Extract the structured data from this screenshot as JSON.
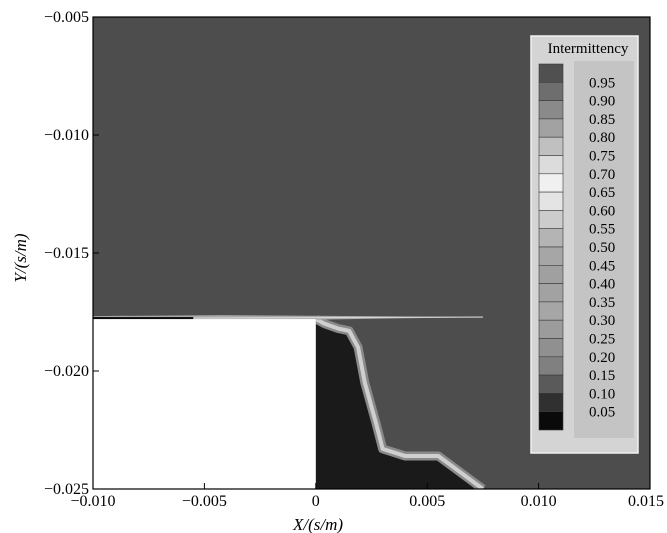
{
  "chart_data": {
    "type": "heatmap",
    "title": "",
    "xlabel": "X/(s/m)",
    "ylabel": "Y/(s/m)",
    "xlim": [
      -0.01,
      0.015
    ],
    "ylim": [
      -0.025,
      -0.005
    ],
    "x_ticks": [
      -0.01,
      -0.005,
      0,
      0.005,
      0.01,
      0.015
    ],
    "x_tick_labels": [
      "−0.010",
      "−0.005",
      "0",
      "0.005",
      "0.010",
      "0.015"
    ],
    "y_ticks": [
      -0.005,
      -0.01,
      -0.015,
      -0.02,
      -0.025
    ],
    "y_tick_labels": [
      "−0.005",
      "−0.010",
      "−0.015",
      "−0.020",
      "−0.025"
    ],
    "grid": false,
    "legend": {
      "title": "Intermittency",
      "position": "top-right",
      "levels": [
        "0.95",
        "0.90",
        "0.85",
        "0.80",
        "0.75",
        "0.70",
        "0.65",
        "0.60",
        "0.55",
        "0.50",
        "0.45",
        "0.40",
        "0.35",
        "0.30",
        "0.25",
        "0.20",
        "0.15",
        "0.10",
        "0.05"
      ],
      "level_colors": [
        "#505050",
        "#6e6e6e",
        "#8a8a8a",
        "#a2a2a2",
        "#c0c0c0",
        "#dcdcdc",
        "#f0f0f0",
        "#e4e4e4",
        "#cccccc",
        "#b4b4b4",
        "#a6a6a6",
        "#a0a0a0",
        "#a2a2a2",
        "#a6a6a6",
        "#9c9c9c",
        "#909090",
        "#808080",
        "#5a5a5a",
        "#303030",
        "#0a0a0a"
      ]
    },
    "regions": {
      "free_stream_color": "#4d4d4d",
      "wake_color": "#1a1a1a",
      "step_body_color": "#ffffff",
      "step": {
        "x": [
          -0.01,
          0
        ],
        "y_top": -0.0178
      },
      "shear_layer_boundary": [
        [
          0,
          -0.0178
        ],
        [
          0.0004,
          -0.018
        ],
        [
          0.001,
          -0.0182
        ],
        [
          0.0015,
          -0.0183
        ],
        [
          0.0019,
          -0.019
        ],
        [
          0.0022,
          -0.0205
        ],
        [
          0.0027,
          -0.0222
        ],
        [
          0.003,
          -0.0233
        ],
        [
          0.004,
          -0.0236
        ],
        [
          0.0055,
          -0.0236
        ],
        [
          0.0065,
          -0.0243
        ],
        [
          0.0075,
          -0.025
        ]
      ]
    }
  }
}
